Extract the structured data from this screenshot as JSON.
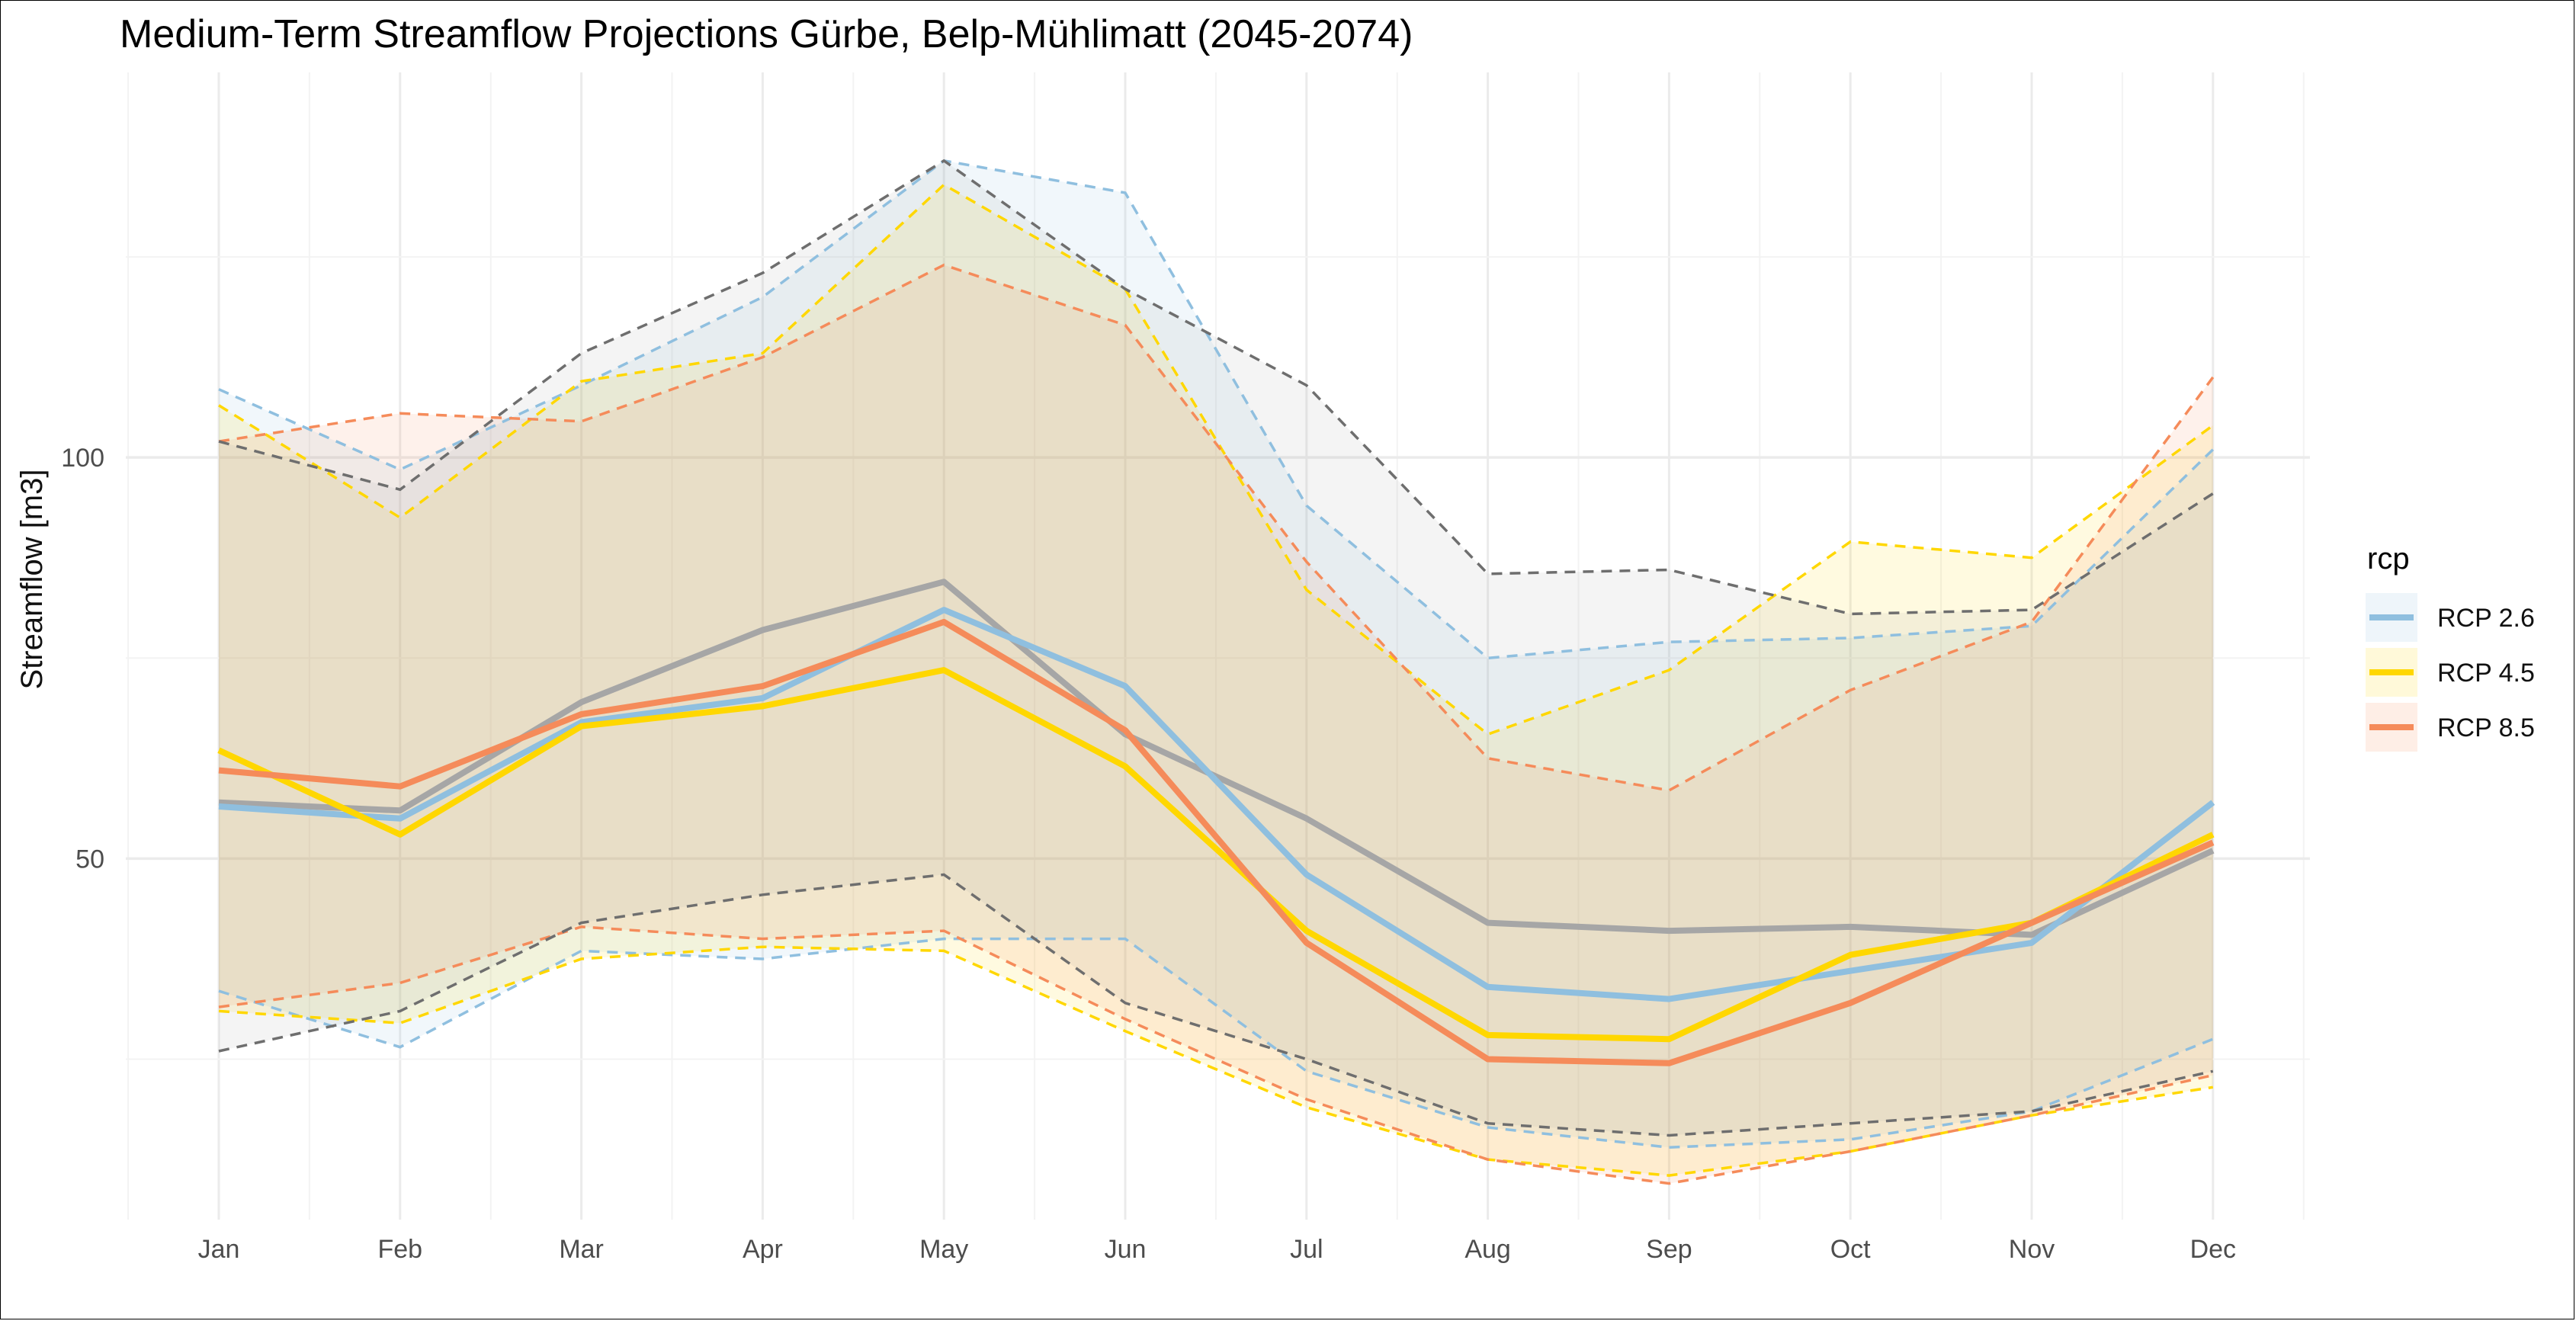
{
  "chart_data": {
    "type": "line",
    "title": "Medium-Term Streamflow Projections Gürbe, Belp-Mühlimatt (2045-2074)",
    "xlabel": "",
    "ylabel": "Streamflow [m3]",
    "categories": [
      "Jan",
      "Feb",
      "Mar",
      "Apr",
      "May",
      "Jun",
      "Jul",
      "Aug",
      "Sep",
      "Oct",
      "Nov",
      "Dec"
    ],
    "ylim": [
      5,
      148
    ],
    "yticks": [
      50,
      100
    ],
    "grid": true,
    "legend": {
      "title": "rcp",
      "position": "right",
      "entries": [
        "RCP 2.6",
        "RCP 4.5",
        "RCP 8.5"
      ]
    },
    "series": [
      {
        "name": "RCP 2.6",
        "color": "#8fbfdf",
        "mean": [
          56.5,
          55,
          67,
          70,
          81,
          71.5,
          48,
          34,
          32.5,
          36,
          39.5,
          57
        ],
        "upper": [
          108.5,
          98.5,
          109,
          120,
          137,
          133,
          94,
          75,
          77,
          77.5,
          79,
          101
        ],
        "lower": [
          33.5,
          26.5,
          38.5,
          37.5,
          40,
          40,
          23.5,
          16.5,
          14,
          15,
          18.5,
          27.5
        ]
      },
      {
        "name": "RCP 4.5",
        "color": "#ffd700",
        "mean": [
          63.5,
          53,
          66.5,
          69,
          73.5,
          61.5,
          41,
          28,
          27.5,
          38,
          42,
          53
        ],
        "upper": [
          106.5,
          92.5,
          109.5,
          113,
          134,
          121,
          83.5,
          65.5,
          73.5,
          89.5,
          87.5,
          104
        ],
        "lower": [
          31,
          29.5,
          37.5,
          39,
          38.5,
          28.5,
          19,
          12.5,
          10.5,
          13.5,
          18,
          21.5
        ]
      },
      {
        "name": "RCP 8.5",
        "color": "#f58b5a",
        "mean": [
          61,
          59,
          68,
          71.5,
          79.5,
          66,
          39.5,
          25,
          24.5,
          32,
          42,
          52
        ],
        "upper": [
          102,
          105.5,
          104.5,
          112.5,
          124,
          116.5,
          87,
          62.5,
          58.5,
          71,
          79.5,
          110
        ],
        "lower": [
          31.5,
          34.5,
          41.5,
          40,
          41,
          30,
          20,
          12.5,
          9.5,
          13.5,
          18,
          23
        ]
      },
      {
        "name": "",
        "color": "#a6a6a6",
        "mean": [
          57,
          56,
          69.5,
          78.5,
          84.5,
          65.5,
          55,
          42,
          41,
          41.5,
          40.5,
          51
        ],
        "upper": [
          102,
          96,
          113,
          123,
          137,
          121,
          109,
          85.5,
          86,
          80.5,
          81,
          95.5
        ],
        "lower": [
          26,
          31,
          42,
          45.5,
          48,
          32,
          25,
          17,
          15.5,
          17,
          18.5,
          23.5
        ]
      }
    ]
  }
}
